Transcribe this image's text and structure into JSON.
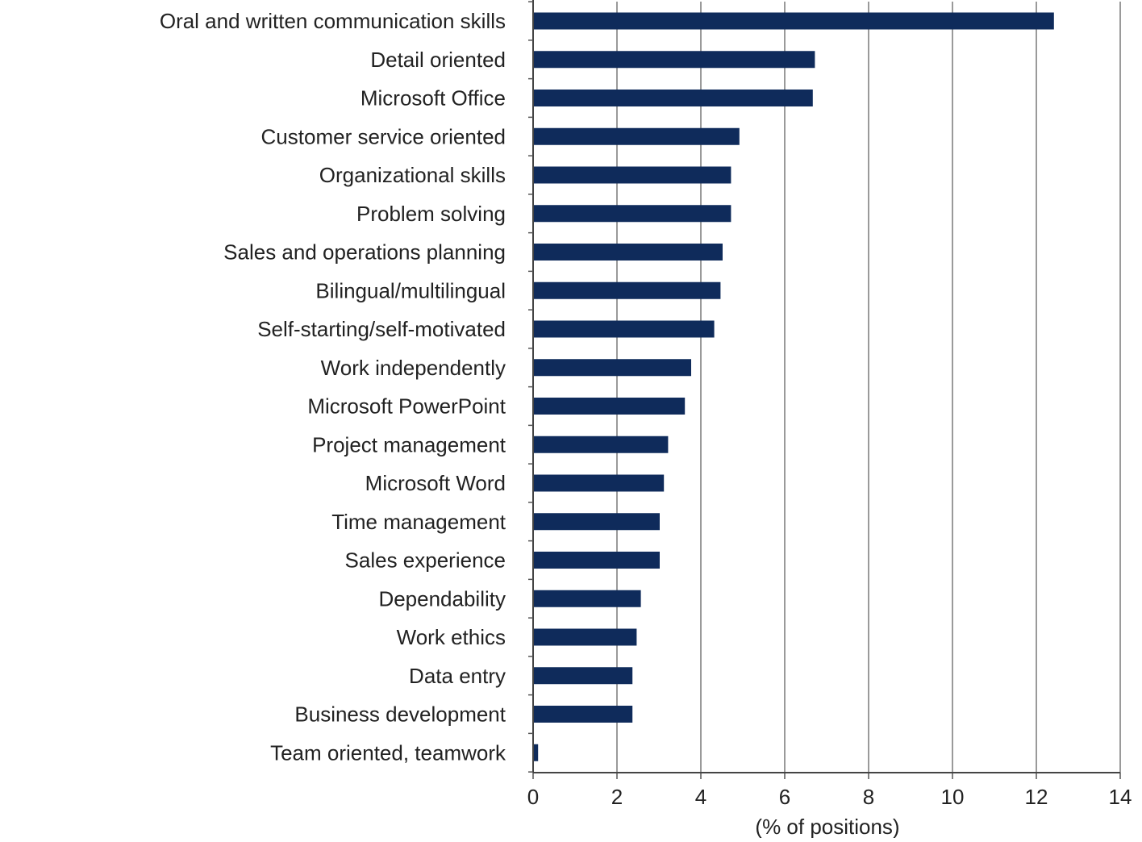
{
  "chart_data": {
    "type": "bar",
    "orientation": "horizontal",
    "title": "",
    "xlabel": "(% of positions)",
    "ylabel": "",
    "xlim": [
      0,
      14
    ],
    "x_ticks": [
      0,
      2,
      4,
      6,
      8,
      10,
      12,
      14
    ],
    "grid": "vertical",
    "legend": "none",
    "bar_color": "#0f2b5b",
    "categories": [
      "Oral and written communication skills",
      "Detail oriented",
      "Microsoft Office",
      "Customer service oriented",
      "Organizational skills",
      "Problem solving",
      "Sales and operations planning",
      "Bilingual/multilingual",
      "Self-starting/self-motivated",
      "Work independently",
      "Microsoft PowerPoint",
      "Project management",
      "Microsoft Word",
      "Time management",
      "Sales experience",
      "Dependability",
      "Work ethics",
      "Data entry",
      "Business development",
      "Team oriented, teamwork"
    ],
    "values": [
      12.4,
      6.7,
      6.65,
      4.9,
      4.7,
      4.7,
      4.5,
      4.45,
      4.3,
      3.75,
      3.6,
      3.2,
      3.1,
      3.0,
      3.0,
      2.55,
      2.45,
      2.35,
      2.35,
      0.1
    ]
  }
}
